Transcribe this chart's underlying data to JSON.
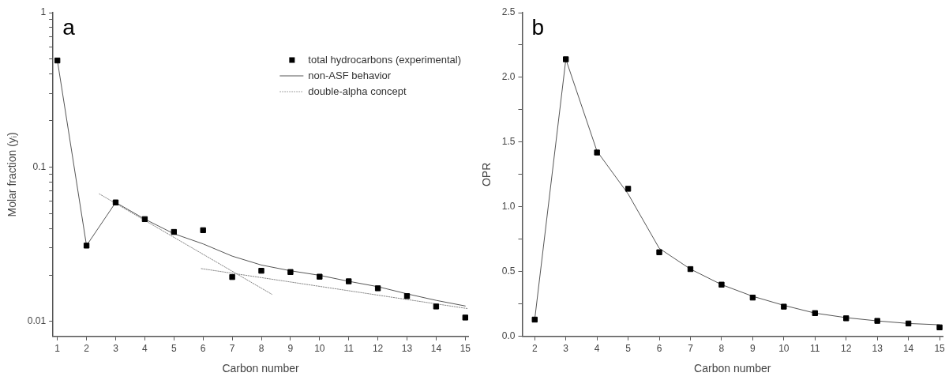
{
  "chart_data": [
    {
      "type": "scatter",
      "xlabel": "Carbon number",
      "ylabel": "Molar fraction (yᵢ)",
      "annotations": [
        "a"
      ],
      "x": [
        1,
        2,
        3,
        4,
        5,
        6,
        7,
        8,
        9,
        10,
        11,
        12,
        13,
        14,
        15
      ],
      "xlim": [
        0.85,
        15.1
      ],
      "xticks": [
        1,
        2,
        3,
        4,
        5,
        6,
        7,
        8,
        9,
        10,
        11,
        12,
        13,
        14,
        15
      ],
      "ylim": [
        0.008,
        1
      ],
      "log": "y",
      "yticks": [
        {
          "value": 0.01,
          "label": "0.01"
        },
        {
          "value": 0.02,
          "label": null
        },
        {
          "value": 0.03,
          "label": null
        },
        {
          "value": 0.04,
          "label": null
        },
        {
          "value": 0.05,
          "label": null
        },
        {
          "value": 0.06,
          "label": null
        },
        {
          "value": 0.07,
          "label": null
        },
        {
          "value": 0.08,
          "label": null
        },
        {
          "value": 0.09,
          "label": null
        },
        {
          "value": 0.1,
          "label": "0.1"
        },
        {
          "value": 0.2,
          "label": null
        },
        {
          "value": 0.3,
          "label": null
        },
        {
          "value": 0.4,
          "label": null
        },
        {
          "value": 0.5,
          "label": null
        },
        {
          "value": 0.6,
          "label": null
        },
        {
          "value": 0.7,
          "label": null
        },
        {
          "value": 0.8,
          "label": null
        },
        {
          "value": 0.9,
          "label": null
        },
        {
          "value": 1,
          "label": "1"
        }
      ],
      "legend": "top right",
      "series": [
        {
          "name": "total hydrocarbons (experimental)",
          "marker": "square",
          "color": "#000000",
          "values": [
            0.49,
            0.031,
            0.059,
            0.046,
            0.038,
            0.039,
            0.0194,
            0.0213,
            0.0209,
            0.0195,
            0.0182,
            0.0164,
            0.0146,
            0.0125,
            0.0106
          ]
        },
        {
          "name": "non-ASF behavior",
          "type": "line",
          "marker": "none",
          "color": "#555555",
          "line_style": "solid",
          "values": [
            0.49,
            0.031,
            0.059,
            0.046,
            0.037,
            0.0318,
            0.0265,
            0.0232,
            0.0213,
            0.0199,
            0.0182,
            0.0168,
            0.0151,
            0.0137,
            0.0126
          ]
        },
        {
          "name": "double-alpha concept",
          "type": "line",
          "marker": "none",
          "color": "#888888",
          "line_style": "dotted",
          "x": [
            2.44,
            8.36
          ],
          "values": [
            0.067,
            0.015
          ]
        },
        {
          "type": "line",
          "marker": "none",
          "color": "#888888",
          "line_style": "dotted",
          "x": [
            5.94,
            15.1
          ],
          "values": [
            0.022,
            0.0121
          ]
        }
      ]
    },
    {
      "type": "scatter",
      "xlabel": "Carbon number",
      "ylabel": "OPR",
      "annotations": [
        "b"
      ],
      "x": [
        2,
        3,
        4,
        5,
        6,
        7,
        8,
        9,
        10,
        11,
        12,
        13,
        14,
        15
      ],
      "xlim": [
        1.6,
        15.1
      ],
      "xticks": [
        2,
        3,
        4,
        5,
        6,
        7,
        8,
        9,
        10,
        11,
        12,
        13,
        14,
        15
      ],
      "ylim": [
        0,
        2.5
      ],
      "yticks": [
        {
          "value": 0,
          "label": "0.0"
        },
        {
          "value": 0.25,
          "label": null
        },
        {
          "value": 0.5,
          "label": "0.5"
        },
        {
          "value": 0.75,
          "label": null
        },
        {
          "value": 1,
          "label": "1.0"
        },
        {
          "value": 1.25,
          "label": null
        },
        {
          "value": 1.5,
          "label": "1.5"
        },
        {
          "value": 1.75,
          "label": null
        },
        {
          "value": 2,
          "label": "2.0"
        },
        {
          "value": 2.25,
          "label": null
        },
        {
          "value": 2.5,
          "label": "2.5"
        }
      ],
      "series": [
        {
          "marker": "square",
          "color": "#000000",
          "values": [
            0.13,
            2.14,
            1.42,
            1.14,
            0.65,
            0.52,
            0.4,
            0.3,
            0.23,
            0.18,
            0.14,
            0.12,
            0.1,
            0.07
          ]
        },
        {
          "type": "line",
          "marker": "none",
          "color": "#555555",
          "line_style": "solid",
          "values": [
            0.13,
            2.14,
            1.43,
            1.1,
            0.68,
            0.52,
            0.4,
            0.31,
            0.24,
            0.18,
            0.145,
            0.12,
            0.1,
            0.09
          ]
        }
      ]
    }
  ]
}
